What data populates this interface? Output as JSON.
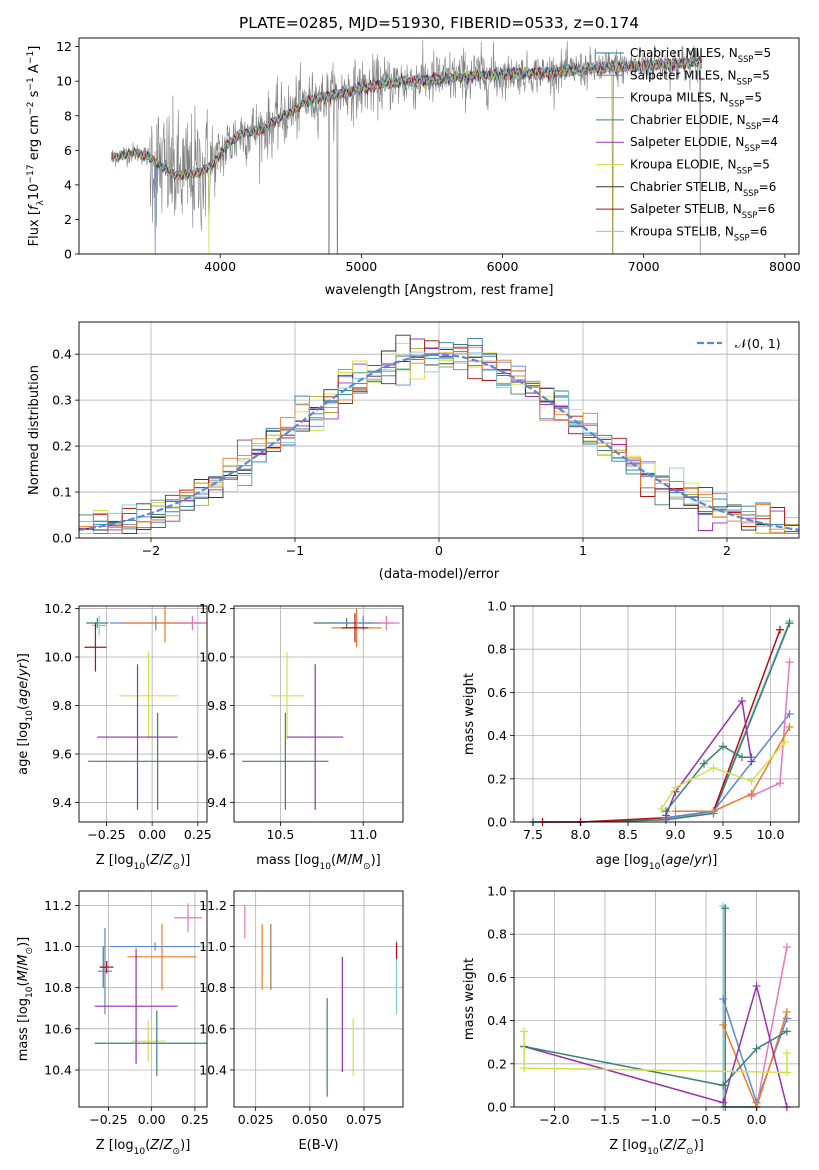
{
  "chart_data": [
    {
      "id": "spectrum",
      "type": "line",
      "title": "PLATE=0285, MJD=51930, FIBERID=0533, z=0.174",
      "xlabel": "wavelength [Angstrom, rest frame]",
      "ylabel": "Flux [f_λ10^-17 erg cm^-2 s^-1 A^-1]",
      "xlim": [
        3000,
        8100
      ],
      "ylim": [
        0,
        12.5
      ],
      "xticks": [
        4000,
        5000,
        6000,
        7000,
        8000
      ],
      "yticks": [
        0,
        2,
        4,
        6,
        8,
        10,
        12
      ],
      "grid": false,
      "legend_position": "top-right",
      "legend": [
        {
          "label": "Chabrier MILES, N",
          "sub": "SSP",
          "suffix": "=5",
          "color": "#1f77b4"
        },
        {
          "label": "Salpeter MILES, N",
          "sub": "SSP",
          "suffix": "=5",
          "color": "#5e86d6"
        },
        {
          "label": "Kroupa MILES, N",
          "sub": "SSP",
          "suffix": "=5",
          "color": "#b5a23a"
        },
        {
          "label": "Chabrier ELODIE, N",
          "sub": "SSP",
          "suffix": "=4",
          "color": "#3f7f6f"
        },
        {
          "label": "Salpeter ELODIE, N",
          "sub": "SSP",
          "suffix": "=4",
          "color": "#9433ad"
        },
        {
          "label": "Kroupa ELODIE, N",
          "sub": "SSP",
          "suffix": "=5",
          "color": "#d4e04a"
        },
        {
          "label": "Chabrier STELIB, N",
          "sub": "SSP",
          "suffix": "=6",
          "color": "#333333"
        },
        {
          "label": "Salpeter STELIB, N",
          "sub": "SSP",
          "suffix": "=6",
          "color": "#b01010"
        },
        {
          "label": "Kroupa STELIB, N",
          "sub": "SSP",
          "suffix": "=6",
          "color": "#7ecbd6"
        }
      ],
      "data_color": "#808080",
      "model_color": "#7ecbd6",
      "model_curve": {
        "wavelength": [
          3230,
          3400,
          3500,
          3560,
          3700,
          3850,
          3950,
          4050,
          4150,
          4300,
          4400,
          4500,
          4600,
          4800,
          5000,
          5200,
          5500,
          5800,
          6000,
          6300,
          6600,
          6800,
          7000,
          7200,
          7400
        ],
        "flux": [
          5.6,
          5.9,
          5.6,
          5.2,
          4.5,
          4.7,
          5.2,
          6.3,
          7.0,
          7.2,
          7.8,
          8.2,
          8.8,
          9.2,
          9.6,
          9.9,
          10.1,
          10.3,
          10.4,
          10.5,
          10.7,
          10.8,
          10.9,
          11.0,
          11.1
        ]
      }
    },
    {
      "id": "residuals",
      "type": "histogram",
      "xlabel": "(data-model)/error",
      "ylabel": "Normed distribution",
      "xlim": [
        -2.5,
        2.5
      ],
      "ylim": [
        0,
        0.47
      ],
      "xticks": [
        -2,
        -1,
        0,
        1,
        2
      ],
      "yticks": [
        0.0,
        0.1,
        0.2,
        0.3,
        0.4
      ],
      "grid": true,
      "bin_width": 0.1,
      "legend_position": "top-right",
      "legend": [
        {
          "label": "𝒩(0, 1)",
          "color": "#5e86d6",
          "style": "dashed"
        }
      ]
    },
    {
      "id": "Z-vs-age",
      "type": "errorbar",
      "xlabel": "Z [log10(Z/Z⊙)]",
      "ylabel": "age [log10(age/yr)]",
      "xlim": [
        -0.4,
        0.3
      ],
      "ylim": [
        9.32,
        10.21
      ],
      "xticks": [
        -0.25,
        0.0,
        0.25
      ],
      "yticks": [
        9.4,
        9.6,
        9.8,
        10.0,
        10.2
      ],
      "grid": true,
      "points": [
        {
          "x": -0.3,
          "y": 10.14,
          "xerr": 0.06,
          "yerr": 0.02,
          "color": "#3f7f6f"
        },
        {
          "x": 0.02,
          "y": 10.14,
          "xerr": 0.25,
          "yerr": 0.03,
          "color": "#5e86d6"
        },
        {
          "x": 0.07,
          "y": 10.14,
          "xerr": 0.22,
          "yerr": 0.08,
          "color": "#e87d2b"
        },
        {
          "x": -0.29,
          "y": 10.13,
          "xerr": 0.04,
          "yerr": 0.04,
          "color": "#7ecbd6"
        },
        {
          "x": -0.31,
          "y": 10.04,
          "xerr": 0.06,
          "yerr": 0.1,
          "color": "#b01010"
        },
        {
          "x": 0.22,
          "y": 10.14,
          "xerr": 0.08,
          "yerr": 0.03,
          "color": "#e377c2"
        },
        {
          "x": -0.02,
          "y": 9.84,
          "xerr": 0.16,
          "yerr": 0.18,
          "color": "#d4e04a"
        },
        {
          "x": -0.08,
          "y": 9.67,
          "xerr": 0.22,
          "yerr": 0.3,
          "color": "#9433ad"
        },
        {
          "x": 0.03,
          "y": 9.57,
          "xerr": 0.38,
          "yerr": 0.2,
          "color": "#3f7f6f"
        }
      ]
    },
    {
      "id": "mass-vs-age",
      "type": "errorbar",
      "xlabel": "mass [log10(M/M⊙)]",
      "ylabel": "",
      "xlim": [
        10.22,
        11.24
      ],
      "ylim": [
        9.32,
        10.21
      ],
      "xticks": [
        10.5,
        11.0
      ],
      "yticks": [
        9.4,
        9.6,
        9.8,
        10.0,
        10.2
      ],
      "grid": true,
      "points": [
        {
          "x": 10.9,
          "y": 10.14,
          "xerr": 0.2,
          "yerr": 0.02,
          "color": "#3f7f6f"
        },
        {
          "x": 11.0,
          "y": 10.14,
          "xerr": 0.18,
          "yerr": 0.03,
          "color": "#5e86d6"
        },
        {
          "x": 10.96,
          "y": 10.12,
          "xerr": 0.15,
          "yerr": 0.08,
          "color": "#e87d2b"
        },
        {
          "x": 10.95,
          "y": 10.12,
          "xerr": 0.08,
          "yerr": 0.06,
          "color": "#b01010"
        },
        {
          "x": 11.14,
          "y": 10.14,
          "xerr": 0.08,
          "yerr": 0.03,
          "color": "#e377c2"
        },
        {
          "x": 10.54,
          "y": 9.84,
          "xerr": 0.1,
          "yerr": 0.18,
          "color": "#d4e04a"
        },
        {
          "x": 10.71,
          "y": 9.67,
          "xerr": 0.17,
          "yerr": 0.3,
          "color": "#9433ad"
        },
        {
          "x": 10.53,
          "y": 9.57,
          "xerr": 0.26,
          "yerr": 0.2,
          "color": "#3f7f6f"
        }
      ]
    },
    {
      "id": "age-vs-weight",
      "type": "line",
      "xlabel": "age [log10(age/yr)]",
      "ylabel": "mass weight",
      "xlim": [
        7.3,
        10.3
      ],
      "ylim": [
        0,
        1.0
      ],
      "xticks": [
        7.5,
        8.0,
        8.5,
        9.0,
        9.5,
        10.0
      ],
      "yticks": [
        0.0,
        0.2,
        0.4,
        0.6,
        0.8,
        1.0
      ],
      "grid": true,
      "series": [
        {
          "color": "#7ecbd6",
          "x": [
            7.5,
            8.0,
            8.9,
            9.4,
            10.2
          ],
          "y": [
            0.0,
            0.0,
            0.01,
            0.05,
            0.93
          ]
        },
        {
          "color": "#3f7f6f",
          "x": [
            7.5,
            8.0,
            8.9,
            9.4,
            10.2
          ],
          "y": [
            0.0,
            0.0,
            0.01,
            0.04,
            0.92
          ]
        },
        {
          "color": "#b01010",
          "x": [
            7.6,
            8.0,
            8.9,
            9.4,
            10.1
          ],
          "y": [
            0.0,
            0.0,
            0.02,
            0.05,
            0.89
          ]
        },
        {
          "color": "#5e86d6",
          "x": [
            8.9,
            9.4,
            10.2
          ],
          "y": [
            0.02,
            0.05,
            0.5
          ]
        },
        {
          "color": "#e377c2",
          "x": [
            9.8,
            10.1,
            10.2
          ],
          "y": [
            0.12,
            0.18,
            0.74
          ]
        },
        {
          "color": "#e87d2b",
          "x": [
            9.0,
            9.4,
            9.8,
            10.2
          ],
          "y": [
            0.05,
            0.05,
            0.13,
            0.44
          ]
        },
        {
          "color": "#9433ad",
          "x": [
            8.9,
            9.0,
            9.7,
            9.8
          ],
          "y": [
            0.03,
            0.14,
            0.56,
            0.28
          ]
        },
        {
          "color": "#3f7f6f",
          "x": [
            8.9,
            9.3,
            9.5,
            9.7,
            9.8
          ],
          "y": [
            0.05,
            0.27,
            0.35,
            0.3,
            0.3
          ]
        },
        {
          "color": "#d4e04a",
          "x": [
            8.85,
            9.0,
            9.4,
            9.8,
            10.15
          ],
          "y": [
            0.06,
            0.16,
            0.25,
            0.19,
            0.37
          ]
        }
      ]
    },
    {
      "id": "Z-vs-mass",
      "type": "errorbar",
      "xlabel": "Z [log10(Z/Z⊙)]",
      "ylabel": "mass [log10(M/M⊙)]",
      "xlim": [
        -0.42,
        0.32
      ],
      "ylim": [
        10.22,
        11.27
      ],
      "xticks": [
        -0.25,
        0.0,
        0.25
      ],
      "yticks": [
        10.4,
        10.6,
        10.8,
        11.0,
        11.2
      ],
      "grid": true,
      "points": [
        {
          "x": -0.28,
          "y": 10.9,
          "xerr": 0.02,
          "yerr": 0.1,
          "color": "#3f7f6f"
        },
        {
          "x": -0.27,
          "y": 10.88,
          "xerr": 0.04,
          "yerr": 0.21,
          "color": "#5e86d6"
        },
        {
          "x": 0.02,
          "y": 11.0,
          "xerr": 0.26,
          "yerr": 0.02,
          "color": "#5e86d6"
        },
        {
          "x": 0.06,
          "y": 10.95,
          "xerr": 0.2,
          "yerr": 0.16,
          "color": "#e87d2b"
        },
        {
          "x": -0.26,
          "y": 10.9,
          "xerr": 0.04,
          "yerr": 0.03,
          "color": "#b01010"
        },
        {
          "x": 0.21,
          "y": 11.14,
          "xerr": 0.08,
          "yerr": 0.07,
          "color": "#e377c2"
        },
        {
          "x": -0.02,
          "y": 10.54,
          "xerr": 0.1,
          "yerr": 0.1,
          "color": "#d4e04a"
        },
        {
          "x": -0.09,
          "y": 10.71,
          "xerr": 0.24,
          "yerr": 0.28,
          "color": "#9433ad"
        },
        {
          "x": 0.03,
          "y": 10.53,
          "xerr": 0.36,
          "yerr": 0.16,
          "color": "#3f7f6f"
        }
      ]
    },
    {
      "id": "ebv-vs-mass",
      "type": "errorbar",
      "xlabel": "E(B-V)",
      "ylabel": "",
      "xlim": [
        0.015,
        0.093
      ],
      "ylim": [
        10.22,
        11.27
      ],
      "xticks": [
        0.025,
        0.05,
        0.075
      ],
      "yticks": [
        10.4,
        10.6,
        10.8,
        11.0,
        11.2
      ],
      "grid": true,
      "points": [
        {
          "x": 0.02,
          "y": 11.12,
          "xerr": 0,
          "yerr": 0.08,
          "color": "#e377c2"
        },
        {
          "x": 0.028,
          "y": 10.95,
          "xerr": 0,
          "yerr": 0.16,
          "color": "#e87d2b"
        },
        {
          "x": 0.032,
          "y": 10.95,
          "xerr": 0,
          "yerr": 0.16,
          "color": "#9c7a4a"
        },
        {
          "x": 0.058,
          "y": 10.51,
          "xerr": 0,
          "yerr": 0.24,
          "color": "#3f7f6f"
        },
        {
          "x": 0.065,
          "y": 10.67,
          "xerr": 0,
          "yerr": 0.28,
          "color": "#9433ad"
        },
        {
          "x": 0.07,
          "y": 10.51,
          "xerr": 0,
          "yerr": 0.14,
          "color": "#d4e04a"
        },
        {
          "x": 0.09,
          "y": 10.85,
          "xerr": 0,
          "yerr": 0.18,
          "color": "#7ecbd6"
        },
        {
          "x": 0.09,
          "y": 10.98,
          "xerr": 0,
          "yerr": 0.04,
          "color": "#b01010"
        }
      ]
    },
    {
      "id": "Z-vs-weight",
      "type": "line",
      "xlabel": "Z [log10(Z/Z⊙)]",
      "ylabel": "mass weight",
      "xlim": [
        -2.4,
        0.42
      ],
      "ylim": [
        0,
        1.0
      ],
      "xticks": [
        -2.0,
        -1.5,
        -1.0,
        -0.5,
        0.0
      ],
      "yticks": [
        0.0,
        0.2,
        0.4,
        0.6,
        0.8,
        1.0
      ],
      "grid": true,
      "series": [
        {
          "color": "#7ecbd6",
          "x": [
            -0.33,
            -0.33,
            0.0
          ],
          "y": [
            0.93,
            0.0,
            0.0
          ]
        },
        {
          "color": "#3f7f6f",
          "x": [
            -0.31,
            -0.31,
            0.0
          ],
          "y": [
            0.92,
            0.0,
            0.0
          ]
        },
        {
          "color": "#5e86d6",
          "x": [
            -0.33,
            0.0,
            0.3
          ],
          "y": [
            0.5,
            0.02,
            0.41
          ]
        },
        {
          "color": "#e377c2",
          "x": [
            0.0,
            0.3
          ],
          "y": [
            0.0,
            0.74
          ]
        },
        {
          "color": "#e87d2b",
          "x": [
            -0.33,
            0.0,
            0.3
          ],
          "y": [
            0.38,
            0.0,
            0.44
          ]
        },
        {
          "color": "#9433ad",
          "x": [
            -2.3,
            -0.33,
            0.0,
            0.3
          ],
          "y": [
            0.28,
            0.02,
            0.56,
            0.0
          ]
        },
        {
          "color": "#3f7f6f",
          "x": [
            -2.3,
            -0.33,
            0.0,
            0.3
          ],
          "y": [
            0.28,
            0.1,
            0.27,
            0.35
          ]
        },
        {
          "color": "#d4e04a",
          "x": [
            -2.3,
            -2.3,
            0.3,
            0.3
          ],
          "y": [
            0.35,
            0.18,
            0.16,
            0.25
          ]
        }
      ]
    }
  ]
}
